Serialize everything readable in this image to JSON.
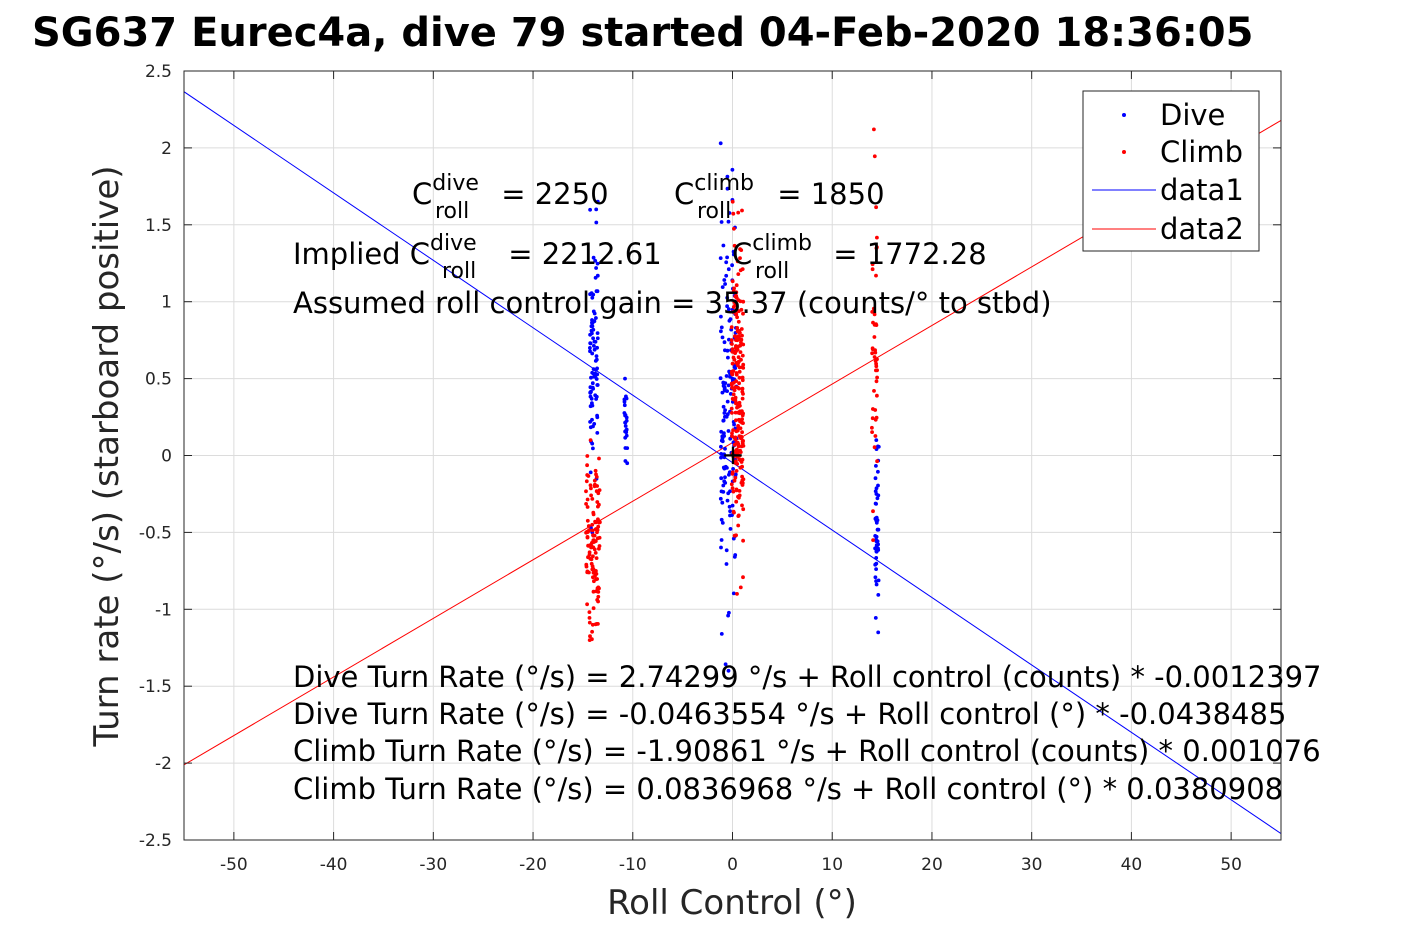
{
  "chart_data": {
    "type": "scatter",
    "title": "SG637 Eurec4a, dive 79 started 04-Feb-2020 18:36:05",
    "xlabel": "Roll Control (°)",
    "ylabel": "Turn rate (°/s) (starboard positive)",
    "xlim": [
      -55,
      55
    ],
    "ylim": [
      -2.5,
      2.5
    ],
    "xticks": [
      -50,
      -40,
      -30,
      -20,
      -10,
      0,
      10,
      20,
      30,
      40,
      50
    ],
    "yticks": [
      -2.5,
      -2,
      -1.5,
      -1,
      -0.5,
      0,
      0.5,
      1,
      1.5,
      2,
      2.5
    ],
    "grid": true,
    "legend_position": "top-right",
    "colors": {
      "dive": "#0000ff",
      "climb": "#ff0000"
    },
    "series": [
      {
        "name": "Dive",
        "kind": "points",
        "color": "#0000ff",
        "clusters": [
          {
            "x": -13.9,
            "x_spread": 0.4,
            "y_range": [
              -0.5,
              1.65
            ],
            "count": 90
          },
          {
            "x": -10.7,
            "x_spread": 0.15,
            "y_range": [
              -0.05,
              0.5
            ],
            "count": 25
          },
          {
            "x": -0.4,
            "x_spread": 0.8,
            "y_range": [
              -1.4,
              2.03
            ],
            "count": 160
          },
          {
            "x": 14.5,
            "x_spread": 0.2,
            "y_range": [
              -1.15,
              0.1
            ],
            "count": 50
          }
        ]
      },
      {
        "name": "Climb",
        "kind": "points",
        "color": "#ff0000",
        "clusters": [
          {
            "x": -14.0,
            "x_spread": 0.7,
            "y_range": [
              -1.2,
              0.1
            ],
            "count": 120
          },
          {
            "x": 0.5,
            "x_spread": 0.6,
            "y_range": [
              -0.9,
              1.65
            ],
            "count": 220
          },
          {
            "x": 14.2,
            "x_spread": 0.3,
            "y_range": [
              -0.55,
              2.12
            ],
            "count": 45
          }
        ]
      },
      {
        "name": "data1",
        "kind": "line",
        "color": "#0000ff",
        "intercept": -0.0463554,
        "slope": -0.0438485
      },
      {
        "name": "data2",
        "kind": "line",
        "color": "#ff0000",
        "intercept": 0.0836968,
        "slope": 0.0380908
      }
    ],
    "annotations": {
      "c_dive_base": "C",
      "c_dive_sup": "dive",
      "c_dive_sub": "roll",
      "c_dive_val": " = 2250",
      "c_climb_base": "C",
      "c_climb_sup": "climb",
      "c_climb_sub": "roll",
      "c_climb_val": " = 1850",
      "implied_prefix": "Implied C",
      "implied_dive_sup": "dive",
      "implied_dive_sub": "roll",
      "implied_dive_val": " = 2212.61",
      "implied_climb_base": "C",
      "implied_climb_sup": "climb",
      "implied_climb_sub": "roll",
      "implied_climb_val": " = 1772.28",
      "gain": "Assumed roll control gain = 35.37 (counts/° to stbd)",
      "eq1": "Dive Turn Rate (°/s) = 2.74299 °/s + Roll control (counts) * -0.0012397",
      "eq2": "Dive Turn Rate (°/s) = -0.0463554 °/s + Roll control (°) * -0.0438485",
      "eq3": "Climb Turn Rate (°/s) = -1.90861 °/s + Roll control (counts) * 0.001076",
      "eq4": "Climb Turn Rate (°/s) = 0.0836968 °/s + Roll control (°) * 0.0380908"
    },
    "origin_marker": "+"
  }
}
